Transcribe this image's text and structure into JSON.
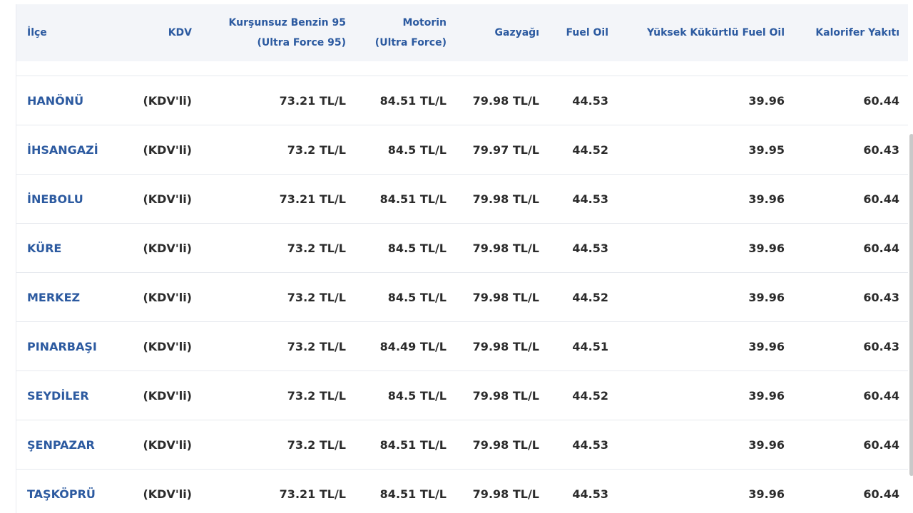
{
  "headers": {
    "ilce": "İlçe",
    "kdv": "KDV",
    "benzin_line1": "Kurşunsuz Benzin 95",
    "benzin_line2": "(Ultra Force 95)",
    "motorin_line1": "Motorin",
    "motorin_line2": "(Ultra Force)",
    "gazyagi": "Gazyağı",
    "fuel_oil": "Fuel Oil",
    "yuksek": "Yüksek Kükürtlü Fuel Oil",
    "kalorifer": "Kalorifer Yakıtı"
  },
  "rows": [
    {
      "ilce": "HANÖNÜ",
      "kdv": "(KDV'li)",
      "benzin": "73.21 TL/L",
      "motorin": "84.51 TL/L",
      "gazyagi": "79.98 TL/L",
      "fuel_oil": "44.53",
      "yuksek": "39.96",
      "kalorifer": "60.44"
    },
    {
      "ilce": "İHSANGAZİ",
      "kdv": "(KDV'li)",
      "benzin": "73.2 TL/L",
      "motorin": "84.5 TL/L",
      "gazyagi": "79.97 TL/L",
      "fuel_oil": "44.52",
      "yuksek": "39.95",
      "kalorifer": "60.43"
    },
    {
      "ilce": "İNEBOLU",
      "kdv": "(KDV'li)",
      "benzin": "73.21 TL/L",
      "motorin": "84.51 TL/L",
      "gazyagi": "79.98 TL/L",
      "fuel_oil": "44.53",
      "yuksek": "39.96",
      "kalorifer": "60.44"
    },
    {
      "ilce": "KÜRE",
      "kdv": "(KDV'li)",
      "benzin": "73.2 TL/L",
      "motorin": "84.5 TL/L",
      "gazyagi": "79.98 TL/L",
      "fuel_oil": "44.53",
      "yuksek": "39.96",
      "kalorifer": "60.44"
    },
    {
      "ilce": "MERKEZ",
      "kdv": "(KDV'li)",
      "benzin": "73.2 TL/L",
      "motorin": "84.5 TL/L",
      "gazyagi": "79.98 TL/L",
      "fuel_oil": "44.52",
      "yuksek": "39.96",
      "kalorifer": "60.43"
    },
    {
      "ilce": "PINARBAŞI",
      "kdv": "(KDV'li)",
      "benzin": "73.2 TL/L",
      "motorin": "84.49 TL/L",
      "gazyagi": "79.98 TL/L",
      "fuel_oil": "44.51",
      "yuksek": "39.96",
      "kalorifer": "60.43"
    },
    {
      "ilce": "SEYDİLER",
      "kdv": "(KDV'li)",
      "benzin": "73.2 TL/L",
      "motorin": "84.5 TL/L",
      "gazyagi": "79.98 TL/L",
      "fuel_oil": "44.52",
      "yuksek": "39.96",
      "kalorifer": "60.44"
    },
    {
      "ilce": "ŞENPAZAR",
      "kdv": "(KDV'li)",
      "benzin": "73.2 TL/L",
      "motorin": "84.51 TL/L",
      "gazyagi": "79.98 TL/L",
      "fuel_oil": "44.53",
      "yuksek": "39.96",
      "kalorifer": "60.44"
    },
    {
      "ilce": "TAŞKÖPRÜ",
      "kdv": "(KDV'li)",
      "benzin": "73.21 TL/L",
      "motorin": "84.51 TL/L",
      "gazyagi": "79.98 TL/L",
      "fuel_oil": "44.53",
      "yuksek": "39.96",
      "kalorifer": "60.44"
    }
  ]
}
